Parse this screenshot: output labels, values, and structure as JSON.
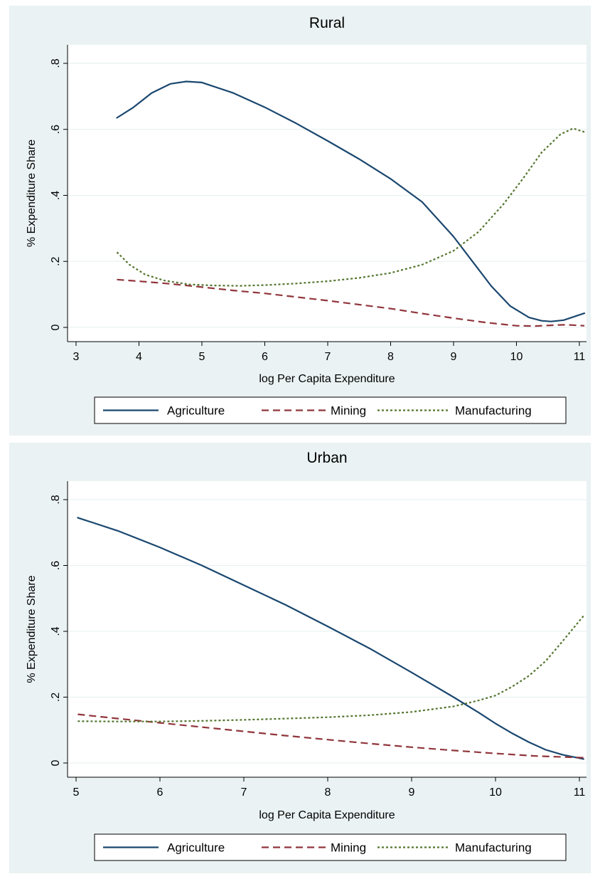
{
  "chart_data": [
    {
      "type": "line",
      "title": "Rural",
      "xlabel": "log Per Capita Expenditure",
      "ylabel": "% Expenditure Share",
      "xlim": [
        3,
        11
      ],
      "ylim": [
        0,
        0.8
      ],
      "xticks": [
        3,
        4,
        5,
        6,
        7,
        8,
        9,
        10,
        11
      ],
      "yticks": [
        0,
        0.2,
        0.4,
        0.6,
        0.8
      ],
      "ytick_labels": [
        "0",
        ".2",
        ".4",
        ".6",
        ".8"
      ],
      "grid": true,
      "legend_position": "bottom",
      "series": [
        {
          "name": "Agriculture",
          "color": "#1a476f",
          "dash": "solid",
          "x": [
            3.65,
            3.9,
            4.2,
            4.5,
            4.75,
            5.0,
            5.5,
            6.0,
            6.5,
            7.0,
            7.5,
            8.0,
            8.5,
            9.0,
            9.3,
            9.6,
            9.9,
            10.2,
            10.4,
            10.55,
            10.75,
            11.08
          ],
          "y": [
            0.635,
            0.665,
            0.71,
            0.738,
            0.745,
            0.742,
            0.71,
            0.667,
            0.618,
            0.565,
            0.51,
            0.45,
            0.38,
            0.275,
            0.2,
            0.125,
            0.065,
            0.03,
            0.02,
            0.018,
            0.022,
            0.043
          ]
        },
        {
          "name": "Mining",
          "color": "#90353b",
          "dash": "dash",
          "x": [
            3.65,
            4.0,
            4.5,
            5.0,
            5.5,
            6.0,
            6.5,
            7.0,
            7.5,
            8.0,
            8.5,
            9.0,
            9.5,
            10.0,
            10.3,
            10.6,
            10.8,
            11.08
          ],
          "y": [
            0.145,
            0.14,
            0.132,
            0.122,
            0.112,
            0.103,
            0.092,
            0.081,
            0.069,
            0.057,
            0.042,
            0.028,
            0.015,
            0.005,
            0.004,
            0.007,
            0.008,
            0.005
          ]
        },
        {
          "name": "Manufacturing",
          "color": "#55752f",
          "dash": "dot",
          "x": [
            3.65,
            3.85,
            4.1,
            4.4,
            4.8,
            5.2,
            5.6,
            6.0,
            6.5,
            7.0,
            7.5,
            8.0,
            8.5,
            9.0,
            9.4,
            9.8,
            10.1,
            10.4,
            10.7,
            10.9,
            11.08
          ],
          "y": [
            0.228,
            0.19,
            0.16,
            0.142,
            0.13,
            0.127,
            0.126,
            0.128,
            0.133,
            0.14,
            0.15,
            0.165,
            0.19,
            0.232,
            0.29,
            0.375,
            0.45,
            0.53,
            0.585,
            0.603,
            0.592
          ]
        }
      ],
      "legend": [
        "Agriculture",
        "Mining",
        "Manufacturing"
      ]
    },
    {
      "type": "line",
      "title": "Urban",
      "xlabel": "log Per Capita Expenditure",
      "ylabel": "% Expenditure Share",
      "xlim": [
        5,
        11
      ],
      "ylim": [
        0,
        0.8
      ],
      "xticks": [
        5,
        6,
        7,
        8,
        9,
        10,
        11
      ],
      "yticks": [
        0,
        0.2,
        0.4,
        0.6,
        0.8
      ],
      "ytick_labels": [
        "0",
        ".2",
        ".4",
        ".6",
        ".8"
      ],
      "grid": true,
      "legend_position": "bottom",
      "series": [
        {
          "name": "Agriculture",
          "color": "#1a476f",
          "dash": "solid",
          "x": [
            5.02,
            5.5,
            6.0,
            6.5,
            7.0,
            7.5,
            8.0,
            8.5,
            9.0,
            9.5,
            9.8,
            10.0,
            10.2,
            10.4,
            10.6,
            10.8,
            11.05
          ],
          "y": [
            0.745,
            0.705,
            0.655,
            0.6,
            0.54,
            0.48,
            0.415,
            0.348,
            0.275,
            0.2,
            0.153,
            0.12,
            0.09,
            0.063,
            0.04,
            0.025,
            0.012
          ]
        },
        {
          "name": "Mining",
          "color": "#90353b",
          "dash": "dash",
          "x": [
            5.02,
            5.5,
            6.0,
            6.5,
            7.0,
            7.5,
            8.0,
            8.5,
            9.0,
            9.5,
            10.0,
            10.5,
            11.05
          ],
          "y": [
            0.148,
            0.135,
            0.122,
            0.109,
            0.096,
            0.083,
            0.071,
            0.059,
            0.048,
            0.038,
            0.029,
            0.021,
            0.016
          ]
        },
        {
          "name": "Manufacturing",
          "color": "#55752f",
          "dash": "dot",
          "x": [
            5.02,
            5.5,
            6.0,
            6.5,
            7.0,
            7.5,
            8.0,
            8.5,
            9.0,
            9.5,
            9.8,
            10.0,
            10.2,
            10.4,
            10.6,
            10.8,
            11.05
          ],
          "y": [
            0.127,
            0.126,
            0.126,
            0.128,
            0.131,
            0.135,
            0.139,
            0.145,
            0.155,
            0.172,
            0.19,
            0.205,
            0.232,
            0.265,
            0.31,
            0.37,
            0.447
          ]
        }
      ],
      "legend": [
        "Agriculture",
        "Mining",
        "Manufacturing"
      ]
    }
  ]
}
